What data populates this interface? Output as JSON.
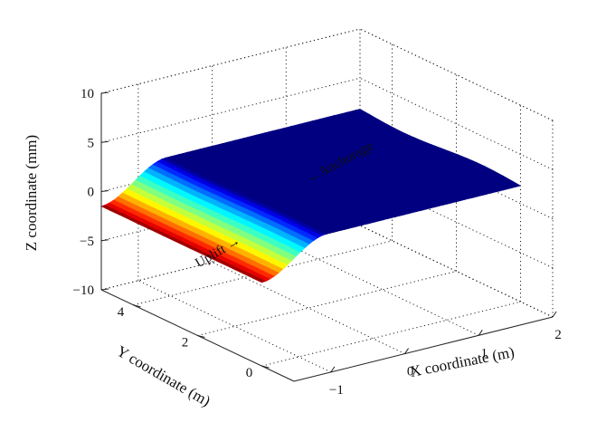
{
  "chart_data": {
    "type": "surface3d",
    "title": "",
    "xlabel": "X coordinate (m)",
    "ylabel": "Y coordinate (m)",
    "zlabel": "Z coordinate (mm)",
    "xlim": [
      -1.5,
      2
    ],
    "ylim": [
      -1,
      5
    ],
    "zlim": [
      -10,
      10
    ],
    "x_ticks": [
      -1,
      0,
      1,
      2
    ],
    "y_ticks": [
      0,
      2,
      4
    ],
    "z_ticks": [
      10,
      5,
      0,
      -5,
      -10
    ],
    "x_tick_labels": [
      "−1",
      "0",
      "1",
      "2"
    ],
    "y_tick_labels": [
      "0",
      "2",
      "4"
    ],
    "z_tick_labels": [
      "10",
      "5",
      "0",
      "−5",
      "−10"
    ],
    "grid": true,
    "colormap": "jet",
    "surface": {
      "x_range": [
        -1.5,
        2
      ],
      "y_range": [
        0,
        5
      ],
      "z_uplift_edge": -1.5,
      "z_anchorage_edge": 1.8,
      "ramp_fraction": 0.25
    },
    "annotations": [
      {
        "text": "←Anchorage",
        "color": "#e8321e"
      },
      {
        "text": "Uplift →",
        "color": "#4a4ab8"
      }
    ]
  }
}
